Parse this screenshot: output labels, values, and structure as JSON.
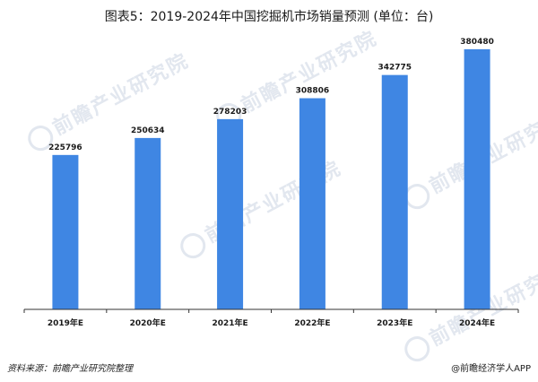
{
  "header": {
    "title": "图表5：2019-2024年中国挖掘机市场销量预测 (单位：台)"
  },
  "footer": {
    "source": "资料来源：前瞻产业研究院整理",
    "credit": "@前瞻经济学人APP"
  },
  "watermark": {
    "text": "前瞻产业研究院"
  },
  "colors": {
    "bar": "#3f86e3",
    "axis": "#333333"
  },
  "chart_data": {
    "type": "bar",
    "title": "图表5：2019-2024年中国挖掘机市场销量预测 (单位：台)",
    "categories": [
      "2019年E",
      "2020年E",
      "2021年E",
      "2022年E",
      "2023年E",
      "2024年E"
    ],
    "values": [
      225796,
      250634,
      278203,
      308806,
      342775,
      380480
    ],
    "ylim": [
      0,
      400000
    ],
    "grid": false,
    "legend": "none"
  }
}
